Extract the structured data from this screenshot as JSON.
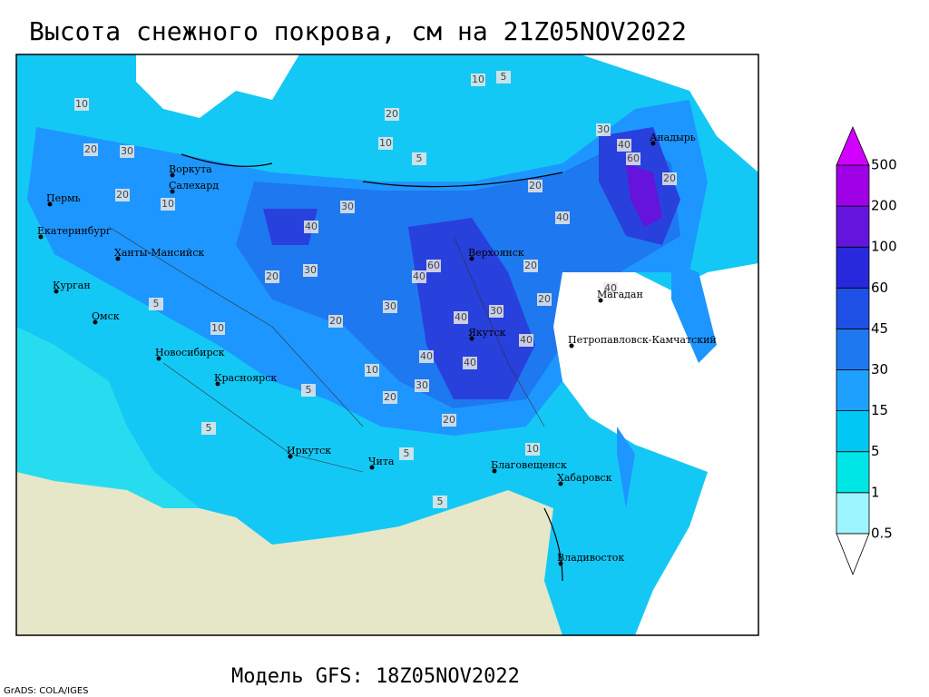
{
  "title": "Высота снежного покрова, см на 21Z05NOV2022",
  "footer": "Модель GFS: 18Z05NOV2022",
  "credit": "GrADS: COLA/IGES",
  "cities": [
    "Воркута",
    "Салехард",
    "Пермь",
    "Екатеринбург",
    "Ханты-Мансийск",
    "Курган",
    "Омск",
    "Новосибирск",
    "Красноярск",
    "Иркутск",
    "Чита",
    "Верхоянск",
    "Якутск",
    "Магадан",
    "Анадырь",
    "Петропавловск-Камчатский",
    "Благовещенск",
    "Хабаровск",
    "Владивосток"
  ],
  "contour_labels": [
    "10",
    "10",
    "5",
    "20",
    "10",
    "5",
    "20",
    "30",
    "20",
    "10",
    "40",
    "30",
    "20",
    "30",
    "40",
    "60",
    "30",
    "40",
    "30",
    "20",
    "40",
    "40",
    "20",
    "40",
    "30",
    "20",
    "10",
    "20",
    "5",
    "10",
    "5",
    "5",
    "20",
    "40",
    "60",
    "40",
    "20",
    "30",
    "40",
    "20",
    "10",
    "5",
    "5"
  ],
  "legend": {
    "levels": [
      0.5,
      1,
      5,
      15,
      30,
      45,
      60,
      100,
      200,
      500
    ],
    "colors": [
      "#ffffff",
      "#9cf5ff",
      "#00e6e6",
      "#00c8f5",
      "#1ea0ff",
      "#1e78f0",
      "#1e50e6",
      "#2828dc",
      "#6414dc",
      "#a000e6",
      "#d200ff"
    ]
  }
}
